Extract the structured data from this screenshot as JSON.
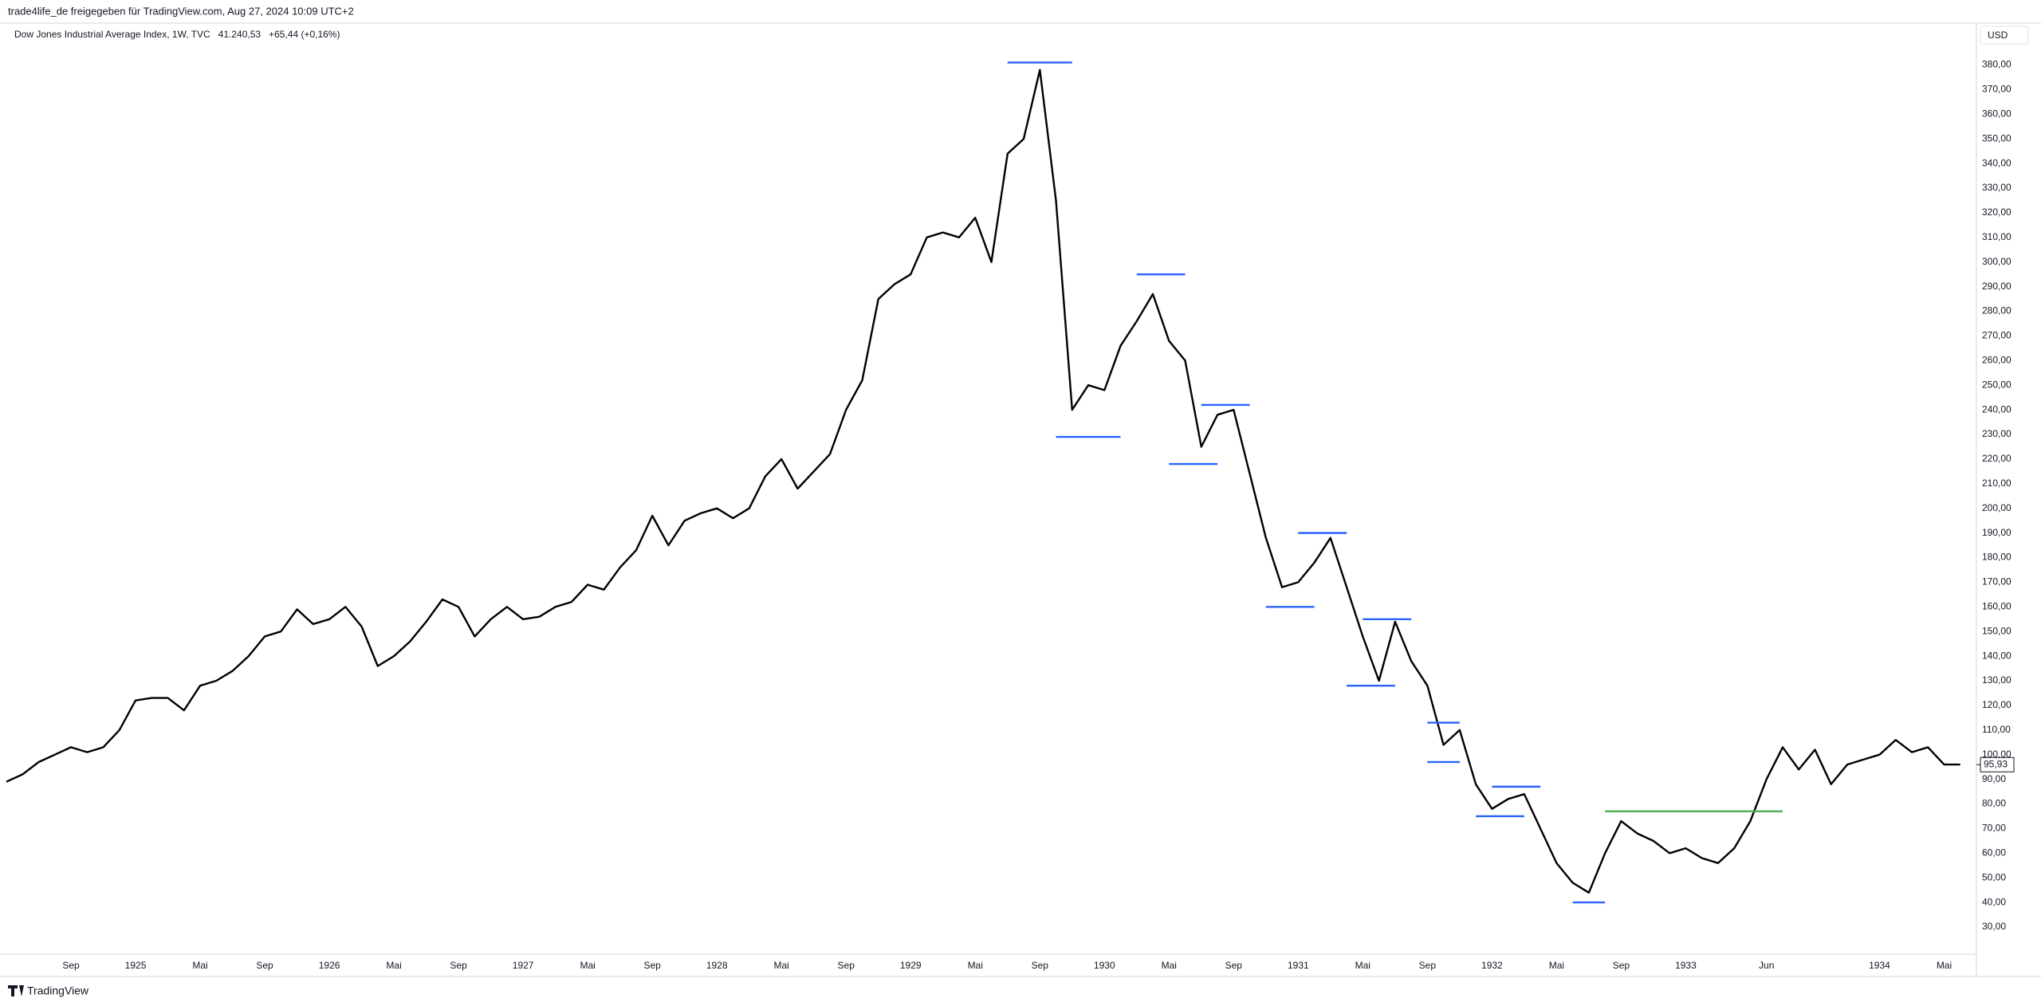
{
  "chart_data": {
    "type": "line",
    "header": "trade4life_de freigegeben für TradingView.com, Aug 27, 2024 10:09 UTC+2",
    "quote": "41.240,53",
    "change": "+65,44 (+0,16%)",
    "currency": "USD",
    "brand": "TradingView",
    "x": [
      "1924-05",
      "1924-06",
      "1924-07",
      "1924-08",
      "1924-09",
      "1924-10",
      "1924-11",
      "1924-12",
      "1925-01",
      "1925-02",
      "1925-03",
      "1925-04",
      "1925-05",
      "1925-06",
      "1925-07",
      "1925-08",
      "1925-09",
      "1925-10",
      "1925-11",
      "1925-12",
      "1926-01",
      "1926-02",
      "1926-03",
      "1926-04",
      "1926-05",
      "1926-06",
      "1926-07",
      "1926-08",
      "1926-09",
      "1926-10",
      "1926-11",
      "1926-12",
      "1927-01",
      "1927-02",
      "1927-03",
      "1927-04",
      "1927-05",
      "1927-06",
      "1927-07",
      "1927-08",
      "1927-09",
      "1927-10",
      "1927-11",
      "1927-12",
      "1928-01",
      "1928-02",
      "1928-03",
      "1928-04",
      "1928-05",
      "1928-06",
      "1928-07",
      "1928-08",
      "1928-09",
      "1928-10",
      "1928-11",
      "1928-12",
      "1929-01",
      "1929-02",
      "1929-03",
      "1929-04",
      "1929-05",
      "1929-06",
      "1929-07",
      "1929-08",
      "1929-09",
      "1929-10",
      "1929-11",
      "1929-12",
      "1930-01",
      "1930-02",
      "1930-03",
      "1930-04",
      "1930-05",
      "1930-06",
      "1930-07",
      "1930-08",
      "1930-09",
      "1930-10",
      "1930-11",
      "1930-12",
      "1931-01",
      "1931-02",
      "1931-03",
      "1931-04",
      "1931-05",
      "1931-06",
      "1931-07",
      "1931-08",
      "1931-09",
      "1931-10",
      "1931-11",
      "1931-12",
      "1932-01",
      "1932-02",
      "1932-03",
      "1932-04",
      "1932-05",
      "1932-06",
      "1932-07",
      "1932-08",
      "1932-09",
      "1932-10",
      "1932-11",
      "1932-12",
      "1933-01",
      "1933-02",
      "1933-03",
      "1933-04",
      "1933-05",
      "1933-06",
      "1933-07",
      "1933-08",
      "1933-09",
      "1933-10",
      "1933-11",
      "1933-12",
      "1934-01",
      "1934-02",
      "1934-03",
      "1934-04",
      "1934-05",
      "1934-06"
    ],
    "series": [
      {
        "name": "Dow Jones Industrial Average Index, 1W, TVC",
        "color": "#000000",
        "values": [
          89,
          92,
          97,
          100,
          103,
          101,
          103,
          110,
          122,
          123,
          123,
          118,
          128,
          130,
          134,
          140,
          148,
          150,
          159,
          153,
          155,
          160,
          152,
          136,
          140,
          146,
          154,
          163,
          160,
          148,
          155,
          160,
          155,
          156,
          160,
          162,
          169,
          167,
          176,
          183,
          197,
          185,
          195,
          198,
          200,
          196,
          200,
          213,
          220,
          208,
          215,
          222,
          240,
          252,
          285,
          291,
          295,
          310,
          312,
          310,
          318,
          300,
          344,
          350,
          378,
          325,
          240,
          250,
          248,
          266,
          276,
          287,
          268,
          260,
          225,
          238,
          240,
          214,
          188,
          168,
          170,
          178,
          188,
          168,
          148,
          130,
          154,
          138,
          128,
          104,
          110,
          88,
          78,
          82,
          84,
          70,
          56,
          48,
          44,
          60,
          73,
          68,
          65,
          60,
          62,
          58,
          56,
          62,
          73,
          90,
          103,
          94,
          102,
          88,
          96,
          98,
          100,
          106,
          101,
          103,
          96,
          96
        ]
      }
    ],
    "last_price": {
      "value": 95.93,
      "label": "95,93"
    },
    "levels": [
      {
        "value": 381,
        "from": "1929-07",
        "to": "1929-11",
        "color": "#2962ff"
      },
      {
        "value": 229,
        "from": "1929-10",
        "to": "1930-02",
        "color": "#2962ff"
      },
      {
        "value": 295,
        "from": "1930-03",
        "to": "1930-06",
        "color": "#2962ff"
      },
      {
        "value": 218,
        "from": "1930-05",
        "to": "1930-08",
        "color": "#2962ff"
      },
      {
        "value": 242,
        "from": "1930-07",
        "to": "1930-10",
        "color": "#2962ff"
      },
      {
        "value": 190,
        "from": "1931-01",
        "to": "1931-04",
        "color": "#2962ff"
      },
      {
        "value": 160,
        "from": "1930-11",
        "to": "1931-02",
        "color": "#2962ff"
      },
      {
        "value": 155,
        "from": "1931-05",
        "to": "1931-08",
        "color": "#2962ff"
      },
      {
        "value": 128,
        "from": "1931-04",
        "to": "1931-07",
        "color": "#2962ff"
      },
      {
        "value": 113,
        "from": "1931-09",
        "to": "1931-11",
        "color": "#2962ff"
      },
      {
        "value": 97,
        "from": "1931-09",
        "to": "1931-11",
        "color": "#2962ff"
      },
      {
        "value": 87,
        "from": "1932-01",
        "to": "1932-04",
        "color": "#2962ff"
      },
      {
        "value": 75,
        "from": "1931-12",
        "to": "1932-03",
        "color": "#2962ff"
      },
      {
        "value": 40,
        "from": "1932-06",
        "to": "1932-08",
        "color": "#2962ff"
      },
      {
        "value": 77,
        "from": "1932-08",
        "to": "1933-07",
        "color": "#4caf50"
      }
    ],
    "xlim": [
      "1924-05",
      "1934-07"
    ],
    "ylim": [
      19,
      397
    ],
    "yticks": [
      {
        "value": 30,
        "label": "30,00"
      },
      {
        "value": 40,
        "label": "40,00"
      },
      {
        "value": 50,
        "label": "50,00"
      },
      {
        "value": 60,
        "label": "60,00"
      },
      {
        "value": 70,
        "label": "70,00"
      },
      {
        "value": 80,
        "label": "80,00"
      },
      {
        "value": 90,
        "label": "90,00"
      },
      {
        "value": 100,
        "label": "100,00"
      },
      {
        "value": 110,
        "label": "110,00"
      },
      {
        "value": 120,
        "label": "120,00"
      },
      {
        "value": 130,
        "label": "130,00"
      },
      {
        "value": 140,
        "label": "140,00"
      },
      {
        "value": 150,
        "label": "150,00"
      },
      {
        "value": 160,
        "label": "160,00"
      },
      {
        "value": 170,
        "label": "170,00"
      },
      {
        "value": 180,
        "label": "180,00"
      },
      {
        "value": 190,
        "label": "190,00"
      },
      {
        "value": 200,
        "label": "200,00"
      },
      {
        "value": 210,
        "label": "210,00"
      },
      {
        "value": 220,
        "label": "220,00"
      },
      {
        "value": 230,
        "label": "230,00"
      },
      {
        "value": 240,
        "label": "240,00"
      },
      {
        "value": 250,
        "label": "250,00"
      },
      {
        "value": 260,
        "label": "260,00"
      },
      {
        "value": 270,
        "label": "270,00"
      },
      {
        "value": 280,
        "label": "280,00"
      },
      {
        "value": 290,
        "label": "290,00"
      },
      {
        "value": 300,
        "label": "300,00"
      },
      {
        "value": 310,
        "label": "310,00"
      },
      {
        "value": 320,
        "label": "320,00"
      },
      {
        "value": 330,
        "label": "330,00"
      },
      {
        "value": 340,
        "label": "340,00"
      },
      {
        "value": 350,
        "label": "350,00"
      },
      {
        "value": 360,
        "label": "360,00"
      },
      {
        "value": 370,
        "label": "370,00"
      },
      {
        "value": 380,
        "label": "380,00"
      }
    ],
    "xticks": [
      {
        "value": "1924-09",
        "label": "Sep"
      },
      {
        "value": "1925-01",
        "label": "1925"
      },
      {
        "value": "1925-05",
        "label": "Mai"
      },
      {
        "value": "1925-09",
        "label": "Sep"
      },
      {
        "value": "1926-01",
        "label": "1926"
      },
      {
        "value": "1926-05",
        "label": "Mai"
      },
      {
        "value": "1926-09",
        "label": "Sep"
      },
      {
        "value": "1927-01",
        "label": "1927"
      },
      {
        "value": "1927-05",
        "label": "Mai"
      },
      {
        "value": "1927-09",
        "label": "Sep"
      },
      {
        "value": "1928-01",
        "label": "1928"
      },
      {
        "value": "1928-05",
        "label": "Mai"
      },
      {
        "value": "1928-09",
        "label": "Sep"
      },
      {
        "value": "1929-01",
        "label": "1929"
      },
      {
        "value": "1929-05",
        "label": "Mai"
      },
      {
        "value": "1929-09",
        "label": "Sep"
      },
      {
        "value": "1930-01",
        "label": "1930"
      },
      {
        "value": "1930-05",
        "label": "Mai"
      },
      {
        "value": "1930-09",
        "label": "Sep"
      },
      {
        "value": "1931-01",
        "label": "1931"
      },
      {
        "value": "1931-05",
        "label": "Mai"
      },
      {
        "value": "1931-09",
        "label": "Sep"
      },
      {
        "value": "1932-01",
        "label": "1932"
      },
      {
        "value": "1932-05",
        "label": "Mai"
      },
      {
        "value": "1932-09",
        "label": "Sep"
      },
      {
        "value": "1933-01",
        "label": "1933"
      },
      {
        "value": "1933-06",
        "label": "Jun"
      },
      {
        "value": "1934-01",
        "label": "1934"
      },
      {
        "value": "1934-05",
        "label": "Mai"
      }
    ],
    "grid": false
  }
}
